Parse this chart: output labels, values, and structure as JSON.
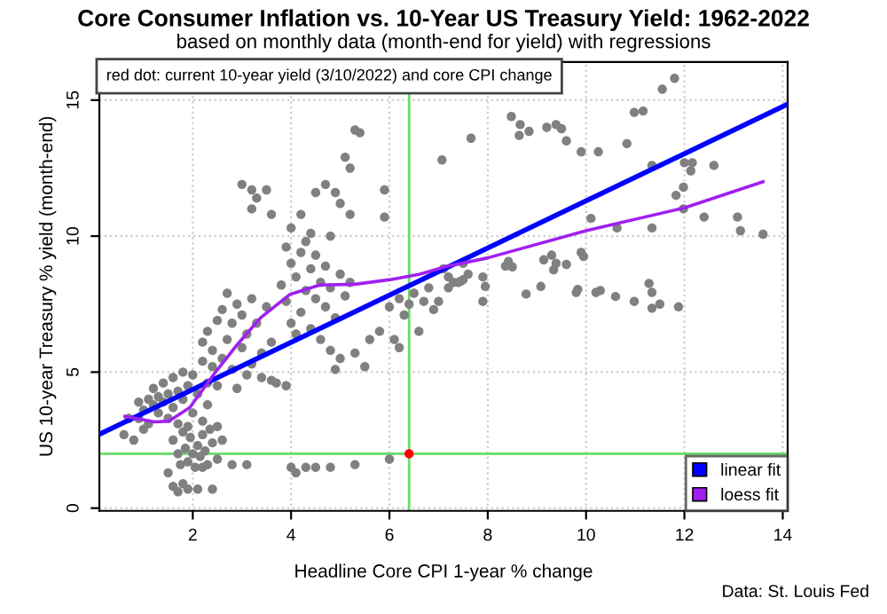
{
  "chart_data": {
    "type": "scatter",
    "title": "Core Consumer Inflation vs. 10-Year US Treasury Yield: 1962-2022",
    "subtitle": "based on monthly data (month-end for yield) with regressions",
    "xlabel": "Headline Core CPI 1-year % change",
    "ylabel": "US 10-year Treasury % yield (month-end)",
    "annotations": [
      "red dot: current 10-year yield (3/10/2022) and core CPI change",
      "Data: St. Louis Fed"
    ],
    "xlim": [
      0.1,
      14.1
    ],
    "ylim": [
      -0.1,
      16.4
    ],
    "xticks": [
      2,
      4,
      6,
      8,
      10,
      12,
      14
    ],
    "yticks": [
      0,
      5,
      10,
      15
    ],
    "grid": true,
    "legend": "bottom right",
    "ref_lines": [
      {
        "axis": "x",
        "value": 6.4,
        "color": "#66dd66"
      },
      {
        "axis": "y",
        "value": 2.0,
        "color": "#66dd66"
      }
    ],
    "series": [
      {
        "marker": "circle",
        "color": "#808080",
        "x": [
          0.6,
          0.8,
          0.9,
          1.0,
          1.5,
          1.6,
          1.7,
          1.9,
          1.8,
          2.1,
          2.4,
          2.2,
          1.0,
          1.1,
          1.2,
          1.2,
          1.3,
          1.3,
          1.4,
          1.4,
          1.5,
          1.5,
          1.6,
          1.6,
          1.7,
          1.7,
          1.8,
          1.8,
          1.9,
          2.0,
          2.0,
          2.1,
          2.2,
          2.3,
          2.3,
          2.4,
          0.9,
          1.1,
          0.7,
          1.6,
          1.7,
          1.75,
          1.8,
          1.85,
          1.9,
          1.95,
          2.0,
          2.05,
          2.1,
          2.15,
          2.2,
          2.25,
          2.3,
          2.35,
          2.4,
          2.2,
          1.9,
          2.5,
          2.6,
          2.5,
          2.2,
          2.3,
          2.4,
          2.5,
          2.6,
          2.6,
          2.7,
          2.7,
          2.8,
          2.8,
          2.9,
          3.0,
          3.0,
          3.1,
          3.2,
          3.2,
          3.3,
          3.4,
          3.5,
          3.6,
          3.1,
          3.6,
          2.5,
          2.9,
          3.0,
          3.2,
          3.3,
          3.5,
          3.2,
          3.6,
          3.8,
          3.9,
          4.0,
          4.0,
          4.1,
          4.2,
          4.2,
          4.3,
          4.4,
          4.4,
          4.5,
          4.5,
          4.6,
          4.7,
          4.7,
          4.8,
          4.9,
          5.0,
          5.1,
          5.2,
          3.9,
          4.3,
          4.1,
          4.0,
          4.2,
          4.5,
          4.7,
          4.9,
          5.1,
          5.2,
          5.3,
          5.4,
          5.0,
          4.8,
          4.4,
          5.2,
          5.9,
          5.9,
          4.6,
          4.8,
          5.0,
          5.3,
          5.6,
          5.8,
          6.1,
          6.2,
          5.5,
          4.9,
          6.0,
          6.2,
          6.4,
          6.5,
          6.7,
          6.3,
          6.6,
          6.9,
          7.0,
          7.2,
          7.4,
          7.6,
          6.8,
          2.8,
          3.1,
          4.0,
          4.1,
          4.3,
          4.5,
          4.8,
          5.3,
          6.0,
          3.4,
          3.7,
          3.9,
          7.07,
          7.1,
          7.3,
          7.5,
          8.48,
          8.66,
          8.64,
          8.84,
          7.66,
          9.2,
          9.39,
          9.5,
          9.6,
          9.9,
          10.25,
          10.83,
          10.98,
          11.16,
          11.55,
          11.8,
          11.34,
          12.0,
          12.16,
          12.13,
          12.6,
          11.98,
          11.83,
          11.98,
          12.4,
          13.08,
          13.14,
          13.6,
          11.34,
          10.63,
          10.1,
          9.9,
          9.95,
          9.14,
          9.3,
          9.39,
          9.34,
          9.6,
          8.42,
          8.5,
          8.36,
          7.9,
          7.95,
          7.9,
          7.5,
          7.46,
          7.2,
          8.78,
          9.08,
          9.8,
          9.83,
          10.2,
          10.29,
          10.6,
          10.98,
          11.28,
          11.34,
          11.34,
          11.5,
          11.88
        ],
        "values": [
          2.7,
          2.5,
          3.3,
          2.9,
          1.3,
          0.8,
          0.6,
          0.7,
          0.9,
          0.7,
          0.7,
          1.5,
          3.6,
          4.0,
          3.8,
          4.4,
          3.5,
          4.1,
          3.9,
          4.6,
          3.3,
          4.2,
          3.7,
          4.8,
          4.3,
          3.1,
          4.0,
          5.0,
          4.5,
          3.5,
          4.9,
          4.2,
          5.4,
          3.8,
          4.6,
          5.2,
          3.9,
          3.1,
          3.3,
          2.5,
          2.0,
          1.6,
          2.8,
          2.2,
          1.7,
          2.6,
          2.0,
          1.5,
          2.3,
          1.9,
          2.7,
          2.1,
          1.6,
          2.9,
          2.4,
          3.2,
          3.0,
          3.0,
          2.5,
          1.8,
          6.1,
          6.5,
          5.8,
          6.9,
          5.5,
          7.3,
          6.2,
          7.9,
          5.1,
          6.8,
          7.5,
          5.9,
          7.1,
          6.4,
          7.7,
          5.3,
          6.8,
          5.7,
          7.4,
          6.1,
          4.9,
          4.7,
          4.5,
          4.4,
          11.9,
          11.7,
          11.4,
          11.7,
          11.0,
          10.8,
          8.2,
          7.6,
          9.0,
          6.8,
          8.5,
          7.2,
          9.4,
          8.0,
          8.8,
          6.6,
          7.7,
          9.3,
          8.3,
          7.4,
          8.9,
          8.1,
          7.0,
          8.6,
          7.8,
          8.3,
          9.6,
          9.8,
          6.4,
          10.3,
          10.8,
          11.6,
          11.9,
          11.6,
          12.9,
          12.5,
          13.9,
          13.8,
          11.2,
          10.0,
          10.1,
          10.8,
          11.7,
          10.7,
          6.2,
          5.8,
          5.5,
          5.7,
          6.2,
          6.5,
          6.2,
          5.9,
          5.2,
          5.1,
          7.4,
          7.7,
          7.5,
          7.9,
          7.6,
          7.1,
          6.5,
          7.3,
          7.6,
          8.1,
          8.3,
          8.6,
          8.1,
          1.6,
          1.6,
          1.5,
          1.3,
          1.5,
          1.5,
          1.5,
          1.6,
          1.8,
          4.8,
          4.6,
          4.5,
          12.8,
          8.8,
          8.3,
          9.0,
          14.4,
          14.1,
          13.7,
          13.85,
          13.6,
          14.0,
          14.1,
          13.95,
          13.5,
          13.1,
          13.1,
          13.4,
          14.55,
          14.6,
          15.4,
          15.8,
          12.6,
          12.7,
          12.7,
          12.4,
          12.6,
          11.8,
          11.5,
          11.0,
          10.7,
          10.7,
          10.2,
          10.07,
          10.3,
          10.3,
          10.65,
          9.4,
          9.25,
          9.13,
          9.3,
          9.0,
          8.76,
          8.96,
          9.07,
          8.87,
          8.9,
          8.5,
          8.15,
          7.6,
          8.4,
          8.35,
          8.5,
          7.87,
          8.15,
          7.93,
          8.04,
          7.93,
          8.0,
          7.78,
          7.6,
          8.26,
          7.93,
          7.35,
          7.5,
          7.4
        ]
      },
      {
        "marker": "circle",
        "color": "#ff0000",
        "x": [
          6.4
        ],
        "values": [
          2.0
        ]
      },
      {
        "type": "line",
        "name": "linear fit",
        "color": "#0000ff",
        "x": [
          0.115,
          14.1
        ],
        "values": [
          2.73,
          14.85
        ]
      },
      {
        "type": "line",
        "name": "loess fit",
        "color": "#a020f0",
        "x": [
          0.62,
          1.22,
          1.52,
          1.94,
          2.42,
          2.9,
          3.38,
          3.98,
          4.58,
          5.3,
          6.02,
          6.62,
          7.2,
          8.0,
          10.0,
          12.0,
          13.6
        ],
        "values": [
          3.37,
          3.17,
          3.2,
          3.7,
          4.9,
          6.0,
          7.0,
          7.86,
          8.2,
          8.23,
          8.4,
          8.6,
          8.9,
          9.2,
          10.2,
          11.04,
          12.0
        ]
      }
    ]
  }
}
